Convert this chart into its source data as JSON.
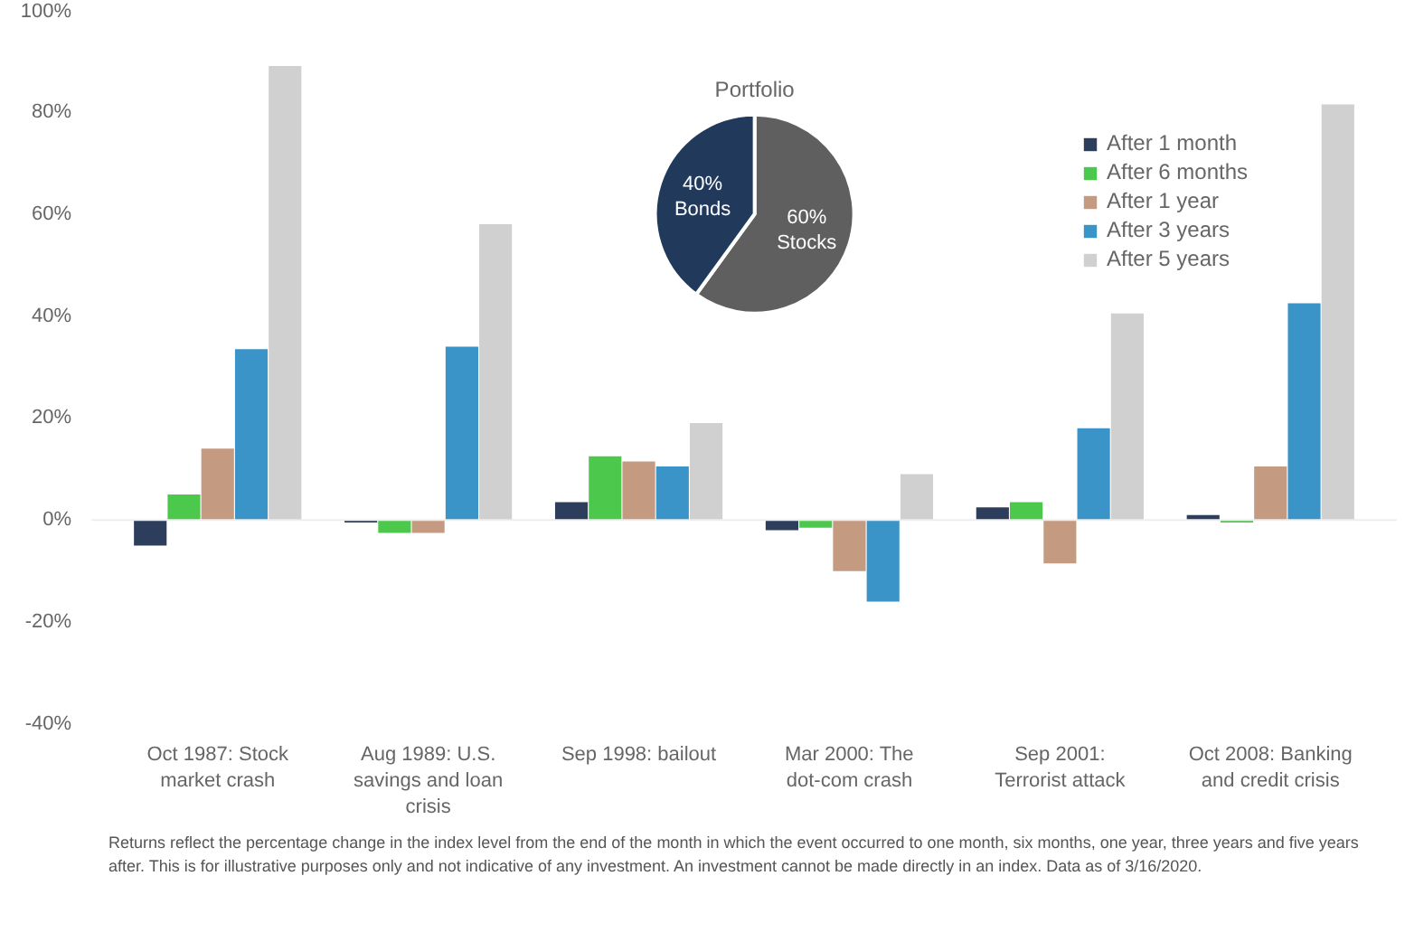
{
  "chart_data": [
    {
      "type": "bar",
      "categories": [
        "Oct 1987: Stock market crash",
        "Aug 1989: U.S. savings and loan crisis",
        "Sep 1998: bailout",
        "Mar 2000: The dot-com crash",
        "Sep 2001: Terrorist attack",
        "Oct 2008: Banking and credit crisis"
      ],
      "series": [
        {
          "name": "After 1 month",
          "color": "#2c3e5c",
          "values": [
            -5,
            -0.5,
            3.5,
            -2,
            2.5,
            1
          ]
        },
        {
          "name": "After 6 months",
          "color": "#4cc94c",
          "values": [
            5,
            -2.5,
            12.5,
            -1.5,
            3.5,
            -0.5
          ]
        },
        {
          "name": "After 1 year",
          "color": "#c49a80",
          "values": [
            14,
            -2.5,
            11.5,
            -10,
            -8.5,
            10.5
          ]
        },
        {
          "name": "After 3 years",
          "color": "#3a94c8",
          "values": [
            33.5,
            34,
            10.5,
            -16,
            18,
            42.5
          ]
        },
        {
          "name": "After 5 years",
          "color": "#d0d0d0",
          "values": [
            89,
            58,
            19,
            9,
            40.5,
            81.5
          ]
        }
      ],
      "ylim": [
        -40,
        100
      ],
      "yticks": [
        {
          "value": -40,
          "label": "-40%"
        },
        {
          "value": -20,
          "label": "-20%"
        },
        {
          "value": 0,
          "label": "0%"
        },
        {
          "value": 20,
          "label": "20%"
        },
        {
          "value": 40,
          "label": "40%"
        },
        {
          "value": 60,
          "label": "60%"
        },
        {
          "value": 80,
          "label": "80%"
        },
        {
          "value": 100,
          "label": "100%"
        }
      ],
      "legend": "top right",
      "annotations": [
        "Returns reflect the percentage change in the index level from the end of the month in which the event occurred to one month, six months, one year, three years and five years after. This is for illustrative purposes only and not indicative of any investment. An investment cannot be made directly in an index. Data as of 3/16/2020."
      ]
    },
    {
      "type": "pie",
      "title": "Portfolio",
      "categories": [
        "Stocks",
        "Bonds"
      ],
      "values": [
        60,
        40
      ],
      "colors": [
        "#5f5f5f",
        "#213a5c"
      ],
      "value_labels": [
        "60%",
        "40%"
      ]
    }
  ]
}
